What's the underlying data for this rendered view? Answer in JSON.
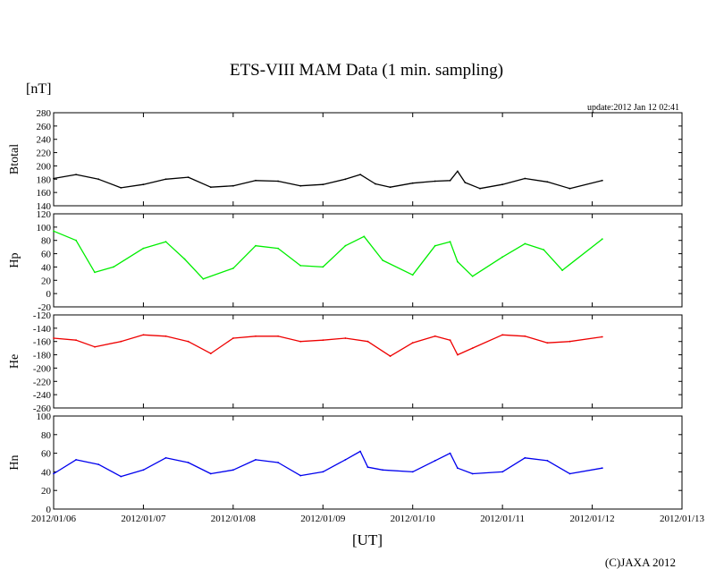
{
  "header": {
    "title": "ETS-VIII MAM Data (1 min. sampling)",
    "unit": "[nT]",
    "update": "update:2012 Jan 12 02:41"
  },
  "footer": {
    "xaxis_label": "[UT]",
    "copyright": "(C)JAXA 2012"
  },
  "chart_data": [
    {
      "type": "line",
      "ylabel": "Btotal",
      "ylim": [
        140,
        280
      ],
      "yticks": [
        140,
        160,
        180,
        200,
        220,
        240,
        260,
        280
      ],
      "xlim": [
        "2012-01-06 00:00",
        "2012-01-13 00:00"
      ],
      "grid": false,
      "series": [
        {
          "color": "#000000",
          "x": [
            "2012-01-06 00:00",
            "2012-01-06 06:00",
            "2012-01-06 12:00",
            "2012-01-06 18:00",
            "2012-01-07 00:00",
            "2012-01-07 06:00",
            "2012-01-07 12:00",
            "2012-01-07 18:00",
            "2012-01-08 00:00",
            "2012-01-08 06:00",
            "2012-01-08 12:00",
            "2012-01-08 18:00",
            "2012-01-09 00:00",
            "2012-01-09 06:00",
            "2012-01-09 10:00",
            "2012-01-09 14:00",
            "2012-01-09 18:00",
            "2012-01-10 00:00",
            "2012-01-10 06:00",
            "2012-01-10 10:00",
            "2012-01-10 12:00",
            "2012-01-10 14:00",
            "2012-01-10 18:00",
            "2012-01-11 00:00",
            "2012-01-11 06:00",
            "2012-01-11 12:00",
            "2012-01-11 18:00",
            "2012-01-12 02:41"
          ],
          "y": [
            181,
            187,
            180,
            167,
            172,
            180,
            183,
            168,
            170,
            178,
            177,
            170,
            172,
            180,
            187,
            173,
            168,
            174,
            177,
            178,
            192,
            175,
            166,
            172,
            181,
            176,
            166,
            178
          ]
        }
      ]
    },
    {
      "type": "line",
      "ylabel": "Hp",
      "ylim": [
        -20,
        120
      ],
      "yticks": [
        -20,
        0,
        20,
        40,
        60,
        80,
        100,
        120
      ],
      "xlim": [
        "2012-01-06 00:00",
        "2012-01-13 00:00"
      ],
      "grid": false,
      "series": [
        {
          "color": "#00ee00",
          "x": [
            "2012-01-06 00:00",
            "2012-01-06 06:00",
            "2012-01-06 11:00",
            "2012-01-06 16:00",
            "2012-01-07 00:00",
            "2012-01-07 06:00",
            "2012-01-07 11:00",
            "2012-01-07 16:00",
            "2012-01-08 00:00",
            "2012-01-08 06:00",
            "2012-01-08 12:00",
            "2012-01-08 18:00",
            "2012-01-09 00:00",
            "2012-01-09 06:00",
            "2012-01-09 11:00",
            "2012-01-09 16:00",
            "2012-01-10 00:00",
            "2012-01-10 06:00",
            "2012-01-10 10:00",
            "2012-01-10 12:00",
            "2012-01-10 16:00",
            "2012-01-11 00:00",
            "2012-01-11 06:00",
            "2012-01-11 11:00",
            "2012-01-11 16:00",
            "2012-01-12 02:41"
          ],
          "y": [
            94,
            80,
            32,
            40,
            68,
            78,
            52,
            22,
            38,
            72,
            68,
            42,
            40,
            72,
            86,
            50,
            28,
            72,
            78,
            48,
            26,
            55,
            75,
            66,
            35,
            82
          ]
        }
      ]
    },
    {
      "type": "line",
      "ylabel": "He",
      "ylim": [
        -260,
        -120
      ],
      "yticks": [
        -260,
        -240,
        -220,
        -200,
        -180,
        -160,
        -140,
        -120
      ],
      "xlim": [
        "2012-01-06 00:00",
        "2012-01-13 00:00"
      ],
      "grid": false,
      "series": [
        {
          "color": "#ee0000",
          "x": [
            "2012-01-06 00:00",
            "2012-01-06 06:00",
            "2012-01-06 11:00",
            "2012-01-06 18:00",
            "2012-01-07 00:00",
            "2012-01-07 06:00",
            "2012-01-07 12:00",
            "2012-01-07 18:00",
            "2012-01-08 00:00",
            "2012-01-08 06:00",
            "2012-01-08 12:00",
            "2012-01-08 18:00",
            "2012-01-09 00:00",
            "2012-01-09 06:00",
            "2012-01-09 12:00",
            "2012-01-09 18:00",
            "2012-01-10 00:00",
            "2012-01-10 06:00",
            "2012-01-10 10:00",
            "2012-01-10 12:00",
            "2012-01-10 16:00",
            "2012-01-11 00:00",
            "2012-01-11 06:00",
            "2012-01-11 12:00",
            "2012-01-11 18:00",
            "2012-01-12 02:41"
          ],
          "y": [
            -155,
            -158,
            -168,
            -160,
            -150,
            -152,
            -160,
            -178,
            -155,
            -152,
            -152,
            -160,
            -158,
            -155,
            -160,
            -182,
            -162,
            -152,
            -158,
            -180,
            -170,
            -150,
            -152,
            -162,
            -160,
            -153
          ]
        }
      ]
    },
    {
      "type": "line",
      "ylabel": "Hn",
      "ylim": [
        0,
        100
      ],
      "yticks": [
        0,
        20,
        40,
        60,
        80,
        100
      ],
      "xlim": [
        "2012-01-06 00:00",
        "2012-01-13 00:00"
      ],
      "grid": false,
      "series": [
        {
          "color": "#0000ee",
          "x": [
            "2012-01-06 00:00",
            "2012-01-06 06:00",
            "2012-01-06 12:00",
            "2012-01-06 18:00",
            "2012-01-07 00:00",
            "2012-01-07 06:00",
            "2012-01-07 12:00",
            "2012-01-07 18:00",
            "2012-01-08 00:00",
            "2012-01-08 06:00",
            "2012-01-08 12:00",
            "2012-01-08 18:00",
            "2012-01-09 00:00",
            "2012-01-09 06:00",
            "2012-01-09 10:00",
            "2012-01-09 12:00",
            "2012-01-09 16:00",
            "2012-01-10 00:00",
            "2012-01-10 06:00",
            "2012-01-10 10:00",
            "2012-01-10 12:00",
            "2012-01-10 16:00",
            "2012-01-11 00:00",
            "2012-01-11 06:00",
            "2012-01-11 12:00",
            "2012-01-11 18:00",
            "2012-01-12 02:41"
          ],
          "y": [
            38,
            53,
            48,
            35,
            42,
            55,
            50,
            38,
            42,
            53,
            50,
            36,
            40,
            53,
            62,
            45,
            42,
            40,
            52,
            60,
            44,
            38,
            40,
            55,
            52,
            38,
            44
          ]
        }
      ]
    }
  ],
  "x_tick_labels": [
    "2012/01/06",
    "2012/01/07",
    "2012/01/08",
    "2012/01/09",
    "2012/01/10",
    "2012/01/11",
    "2012/01/12",
    "2012/01/13"
  ]
}
